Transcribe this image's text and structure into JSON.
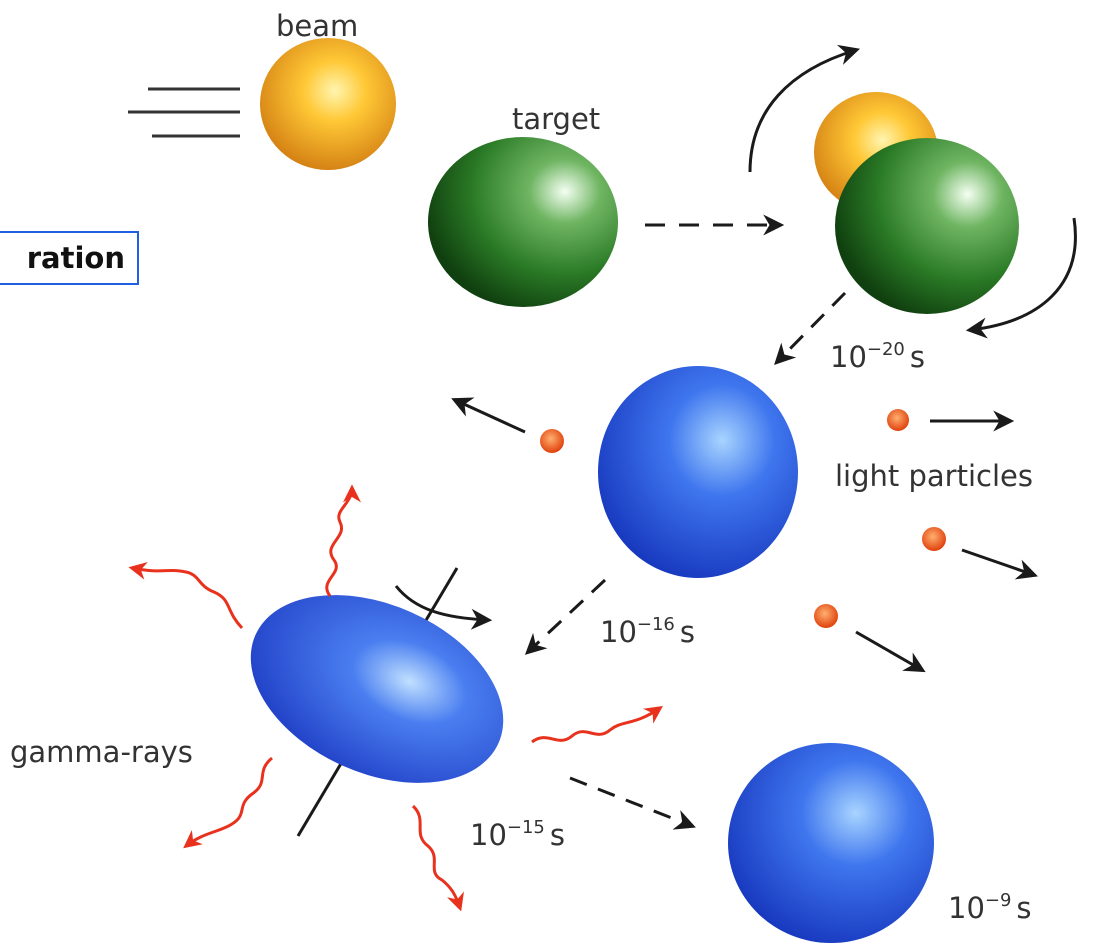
{
  "labels": {
    "beam": "beam",
    "target": "target",
    "light_particles": "light particles",
    "gamma_rays": "gamma-rays",
    "time1": {
      "base": "10",
      "exp": "−20",
      "unit": "s"
    },
    "time2": {
      "base": "10",
      "exp": "−16",
      "unit": "s"
    },
    "time3": {
      "base": "10",
      "exp": "−15",
      "unit": "s"
    },
    "time4": {
      "base": "10",
      "exp": "−9",
      "unit": "s"
    },
    "box_text": "ration"
  },
  "colors": {
    "beam": "#f0a020",
    "target": "#2f8a2a",
    "nucleus": "#1f4fe0",
    "particle": "#e85a10",
    "gamma": "#e8321e",
    "arrow": "#1a1a1a",
    "box_border": "#1f5fe0"
  }
}
